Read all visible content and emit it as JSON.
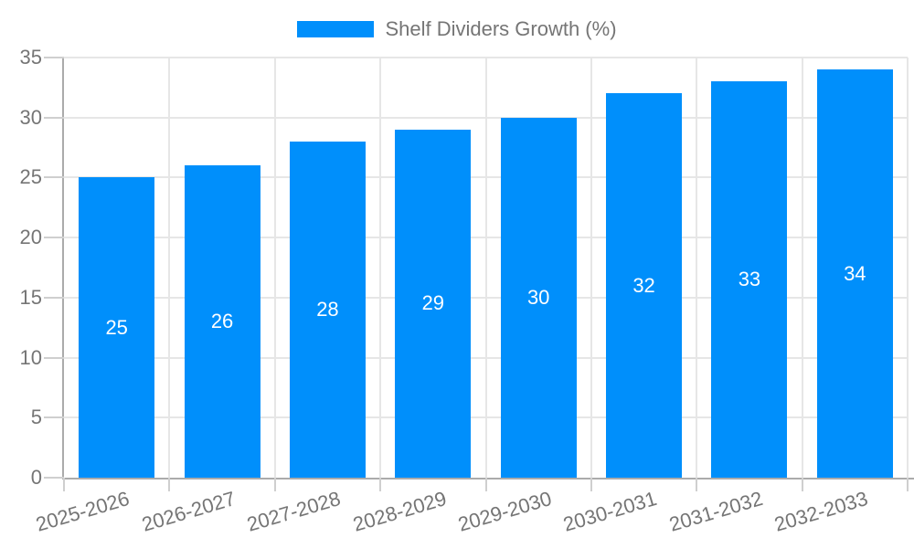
{
  "chart_data": {
    "type": "bar",
    "title": "Shelf Dividers Growth (%)",
    "categories": [
      "2025-2026",
      "2026-2027",
      "2027-2028",
      "2028-2029",
      "2029-2030",
      "2030-2031",
      "2031-2032",
      "2032-2033"
    ],
    "values": [
      25,
      26,
      28,
      29,
      30,
      32,
      33,
      34
    ],
    "xlabel": "",
    "ylabel": "",
    "ylim": [
      0,
      35
    ],
    "yticks": [
      0,
      5,
      10,
      15,
      20,
      25,
      30,
      35
    ],
    "grid": true,
    "value_label_position": "inside-center",
    "legend": {
      "position": "top",
      "label": "Shelf Dividers Growth (%)"
    },
    "colors": {
      "bar": "#008FFB",
      "value_label_text": "#FFFFFF",
      "axis_text": "#757575",
      "gridline": "#E6E6E6",
      "axis_line": "#ABABAB",
      "tick": "#CFCFCF",
      "background": "#FFFFFF"
    }
  }
}
